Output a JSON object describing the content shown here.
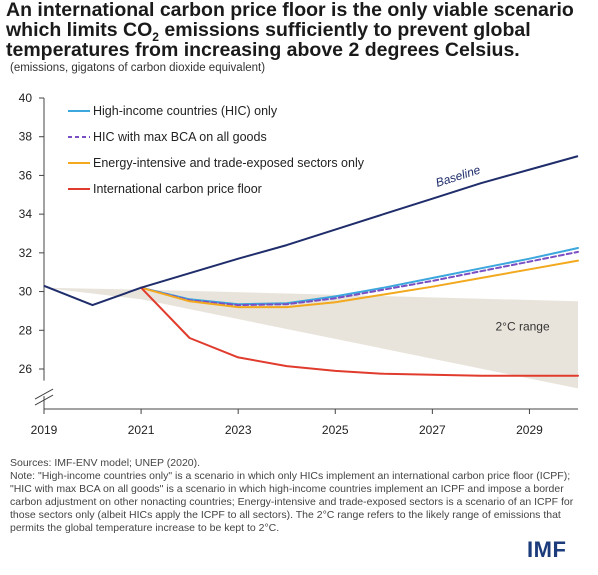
{
  "title_line1": "An international carbon price floor is the only viable scenario",
  "title_line2_pre": "which limits CO",
  "title_line2_sub": "2",
  "title_line2_post": " emissions sufficiently to prevent global",
  "title_line3": "temperatures from increasing above 2 degrees Celsius.",
  "subtitle": "(emissions, gigatons of carbon dioxide equivalent)",
  "notes": {
    "sources": "Sources: IMF-ENV model; UNEP (2020).",
    "note": "Note: \"High-income countries only\" is a scenario in which only HICs implement an international carbon price floor (ICPF); \"HIC with max BCA on all goods\" is a scenario in which high-income countries implement an ICPF and impose a border carbon adjustment on other nonacting countries; Energy-intensive and trade-exposed sectors is a scenario of an ICPF for those sectors only (albeit HICs apply the ICPF to all sectors). The 2°C range refers to the likely range of emissions that permits the global temperature increase to be kept to 2°C."
  },
  "logo": "IMF",
  "chart_data": {
    "type": "line",
    "xlim": [
      2019,
      2030
    ],
    "ylim": [
      25,
      40
    ],
    "y_ticks": [
      "26",
      "28",
      "30",
      "32",
      "34",
      "36",
      "38",
      "40"
    ],
    "x_ticks": [
      "2019",
      "2021",
      "2023",
      "2025",
      "2027",
      "2029"
    ],
    "axis_break": true,
    "legend_position": "top-left",
    "band": {
      "label": "2°C range",
      "color": "#e9e4db",
      "x": [
        2019,
        2021,
        2030
      ],
      "upper": [
        30.2,
        30.1,
        29.5
      ],
      "lower": [
        30.2,
        29.6,
        25.0
      ]
    },
    "baseline": {
      "label": "Baseline",
      "color": "#1f2d6b",
      "x": [
        2019,
        2020,
        2021,
        2022,
        2023,
        2024,
        2025,
        2026,
        2027,
        2028,
        2029,
        2030
      ],
      "y": [
        30.3,
        29.3,
        30.2,
        30.95,
        31.7,
        32.4,
        33.2,
        34.0,
        34.8,
        35.6,
        36.3,
        37.0
      ]
    },
    "series": [
      {
        "name": "High-income countries (HIC) only",
        "color": "#3ba7dd",
        "dash": false,
        "x": [
          2021,
          2022,
          2023,
          2024,
          2025,
          2026,
          2027,
          2028,
          2029,
          2030
        ],
        "y": [
          30.2,
          29.6,
          29.35,
          29.4,
          29.75,
          30.2,
          30.7,
          31.2,
          31.7,
          32.25
        ]
      },
      {
        "name": "HIC with max BCA on all goods",
        "color": "#7a4fc4",
        "dash": true,
        "x": [
          2021,
          2022,
          2023,
          2024,
          2025,
          2026,
          2027,
          2028,
          2029,
          2030
        ],
        "y": [
          30.2,
          29.55,
          29.3,
          29.35,
          29.65,
          30.1,
          30.55,
          31.05,
          31.55,
          32.05
        ]
      },
      {
        "name": "Energy-intensive and trade-exposed sectors only",
        "color": "#f2a91e",
        "dash": false,
        "x": [
          2021,
          2022,
          2023,
          2024,
          2025,
          2026,
          2027,
          2028,
          2029,
          2030
        ],
        "y": [
          30.2,
          29.5,
          29.2,
          29.2,
          29.45,
          29.85,
          30.25,
          30.7,
          31.15,
          31.6
        ]
      },
      {
        "name": "International carbon price floor",
        "color": "#e03b2c",
        "dash": false,
        "x": [
          2021,
          2022,
          2023,
          2024,
          2025,
          2026,
          2027,
          2028,
          2029,
          2030
        ],
        "y": [
          30.2,
          27.6,
          26.6,
          26.15,
          25.9,
          25.75,
          25.7,
          25.65,
          25.65,
          25.65
        ]
      }
    ]
  }
}
